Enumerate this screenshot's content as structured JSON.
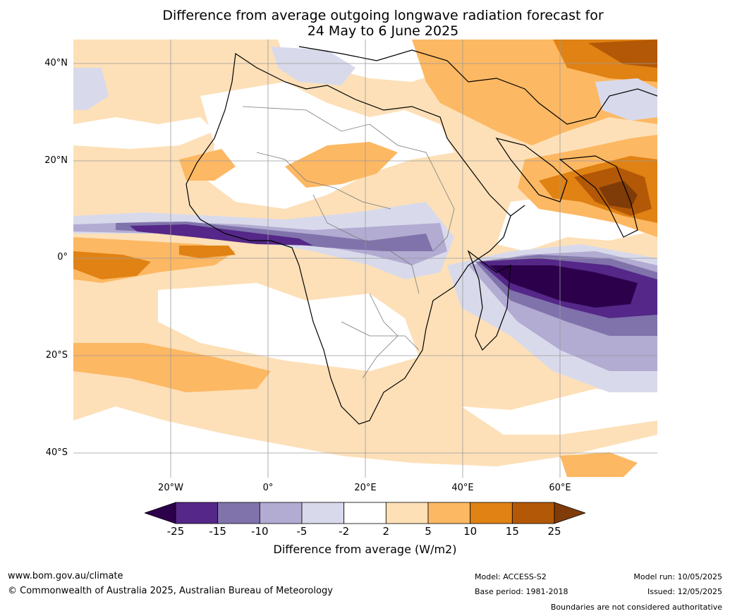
{
  "title": {
    "line1": "Difference from average outgoing longwave radiation forecast for",
    "line2": "24 May to 6 June 2025"
  },
  "map": {
    "lat_labels": [
      "40°N",
      "20°N",
      "0°",
      "20°S",
      "40°S"
    ],
    "lon_labels": [
      "20°W",
      "0°",
      "20°E",
      "40°E",
      "60°E"
    ]
  },
  "colorbar": {
    "ticks": [
      "-25",
      "-15",
      "-10",
      "-5",
      "-2",
      "2",
      "5",
      "10",
      "15",
      "25"
    ],
    "colors": [
      "#2d004b",
      "#542788",
      "#8073ac",
      "#b2abd2",
      "#d8daeb",
      "#ffffff",
      "#fee0b6",
      "#fdb863",
      "#e08214",
      "#b35806",
      "#7f3b08"
    ],
    "label": "Difference from average (W/m2)"
  },
  "footer": {
    "website": "www.bom.gov.au/climate",
    "copyright": "© Commonwealth of Australia 2025, Australian Bureau of Meteorology",
    "model": "Model: ACCESS-S2",
    "base_period": "Base period: 1981-2018",
    "model_run": "Model run: 10/05/2025",
    "issued": "Issued: 12/05/2025",
    "disclaimer": "Boundaries are not considered authoritative"
  }
}
